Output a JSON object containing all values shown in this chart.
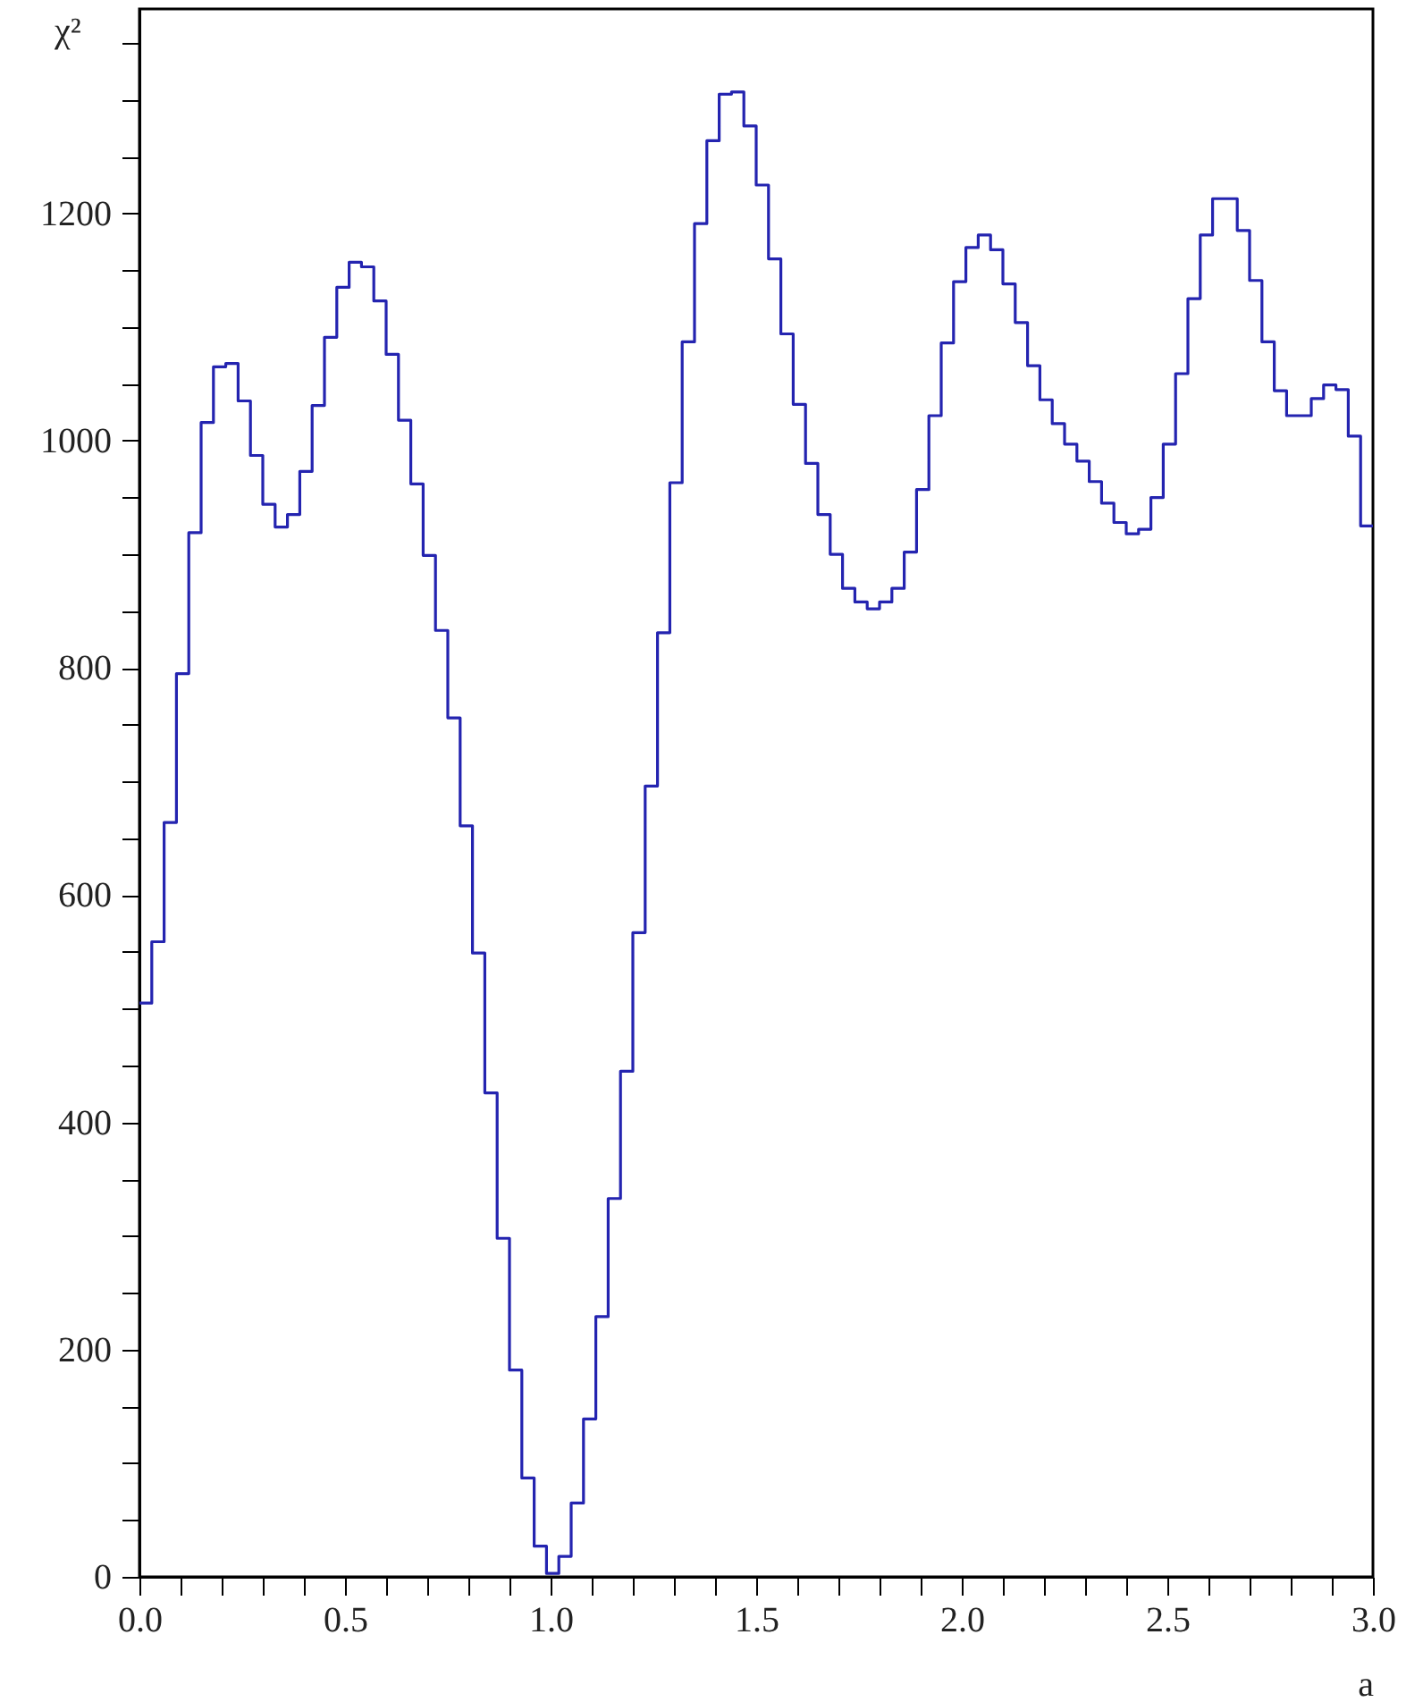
{
  "chart_data": {
    "type": "histogram",
    "xlabel": "a",
    "ylabel": "χ²",
    "bins": [
      0.0,
      0.03,
      0.06,
      0.09,
      0.12,
      0.15,
      0.18,
      0.21,
      0.24,
      0.27,
      0.3,
      0.33,
      0.36,
      0.39,
      0.42,
      0.45,
      0.48,
      0.51,
      0.54,
      0.57,
      0.6,
      0.63,
      0.66,
      0.69,
      0.72,
      0.75,
      0.78,
      0.81,
      0.84,
      0.87,
      0.9,
      0.93,
      0.96,
      0.99,
      1.02,
      1.05,
      1.08,
      1.11,
      1.14,
      1.17,
      1.2,
      1.23,
      1.26,
      1.29,
      1.32,
      1.35,
      1.38,
      1.41,
      1.44,
      1.47,
      1.5,
      1.53,
      1.56,
      1.59,
      1.62,
      1.65,
      1.68,
      1.71,
      1.74,
      1.77,
      1.8,
      1.83,
      1.86,
      1.89,
      1.92,
      1.95,
      1.98,
      2.01,
      2.04,
      2.07,
      2.1,
      2.13,
      2.16,
      2.19,
      2.22,
      2.25,
      2.28,
      2.31,
      2.34,
      2.37,
      2.4,
      2.43,
      2.46,
      2.49,
      2.52,
      2.55,
      2.58,
      2.61,
      2.64,
      2.67,
      2.7,
      2.73,
      2.76,
      2.79,
      2.82,
      2.85,
      2.88,
      2.91,
      2.94,
      2.97,
      3.0
    ],
    "values": [
      505,
      559,
      664,
      795,
      919,
      1016,
      1065,
      1068,
      1035,
      987,
      944,
      924,
      935,
      973,
      1031,
      1091,
      1135,
      1157,
      1153,
      1123,
      1076,
      1018,
      962,
      899,
      833,
      756,
      661,
      549,
      426,
      298,
      182,
      87,
      27,
      3,
      18,
      65,
      139,
      229,
      333,
      445,
      567,
      696,
      831,
      963,
      1087,
      1191,
      1264,
      1305,
      1307,
      1277,
      1225,
      1160,
      1094,
      1032,
      980,
      935,
      900,
      870,
      858,
      852,
      858,
      870,
      902,
      957,
      1022,
      1086,
      1140,
      1170,
      1181,
      1168,
      1138,
      1104,
      1066,
      1036,
      1015,
      997,
      982,
      964,
      945,
      928,
      918,
      922,
      950,
      997,
      1059,
      1125,
      1181,
      1213,
      1213,
      1185,
      1141,
      1087,
      1044,
      1022,
      1022,
      1037,
      1049,
      1045,
      1004,
      925
    ],
    "color": "#2424b0",
    "xlim": [
      0,
      3.0
    ],
    "ylim": [
      0,
      1380
    ],
    "xticks": [
      {
        "value": 0,
        "label": "0.0"
      },
      {
        "value": 0.1,
        "label": null
      },
      {
        "value": 0.2,
        "label": null
      },
      {
        "value": 0.3,
        "label": null
      },
      {
        "value": 0.4,
        "label": null
      },
      {
        "value": 0.5,
        "label": "0.5"
      },
      {
        "value": 0.6,
        "label": null
      },
      {
        "value": 0.7,
        "label": null
      },
      {
        "value": 0.8,
        "label": null
      },
      {
        "value": 0.9,
        "label": null
      },
      {
        "value": 1,
        "label": "1.0"
      },
      {
        "value": 1.1,
        "label": null
      },
      {
        "value": 1.2,
        "label": null
      },
      {
        "value": 1.3,
        "label": null
      },
      {
        "value": 1.4,
        "label": null
      },
      {
        "value": 1.5,
        "label": "1.5"
      },
      {
        "value": 1.6,
        "label": null
      },
      {
        "value": 1.7,
        "label": null
      },
      {
        "value": 1.8,
        "label": null
      },
      {
        "value": 1.9,
        "label": null
      },
      {
        "value": 2,
        "label": "2.0"
      },
      {
        "value": 2.1,
        "label": null
      },
      {
        "value": 2.2,
        "label": null
      },
      {
        "value": 2.3,
        "label": null
      },
      {
        "value": 2.4,
        "label": null
      },
      {
        "value": 2.5,
        "label": "2.5"
      },
      {
        "value": 2.6,
        "label": null
      },
      {
        "value": 2.7,
        "label": null
      },
      {
        "value": 2.8,
        "label": null
      },
      {
        "value": 2.9,
        "label": null
      },
      {
        "value": 3,
        "label": "3.0"
      }
    ],
    "yticks": [
      0,
      {
        "value": 50,
        "label": null
      },
      {
        "value": 100,
        "label": null
      },
      {
        "value": 150,
        "label": null
      },
      200,
      {
        "value": 250,
        "label": null
      },
      {
        "value": 300,
        "label": null
      },
      {
        "value": 350,
        "label": null
      },
      400,
      {
        "value": 450,
        "label": null
      },
      {
        "value": 500,
        "label": null
      },
      {
        "value": 550,
        "label": null
      },
      600,
      {
        "value": 650,
        "label": null
      },
      {
        "value": 700,
        "label": null
      },
      {
        "value": 750,
        "label": null
      },
      800,
      {
        "value": 850,
        "label": null
      },
      {
        "value": 900,
        "label": null
      },
      {
        "value": 950,
        "label": null
      },
      1000,
      {
        "value": 1050,
        "label": null
      },
      {
        "value": 1100,
        "label": null
      },
      {
        "value": 1150,
        "label": null
      },
      1200,
      {
        "value": 1250,
        "label": null
      },
      {
        "value": 1300,
        "label": null
      },
      {
        "value": 1350,
        "label": null
      }
    ],
    "grid": false
  }
}
